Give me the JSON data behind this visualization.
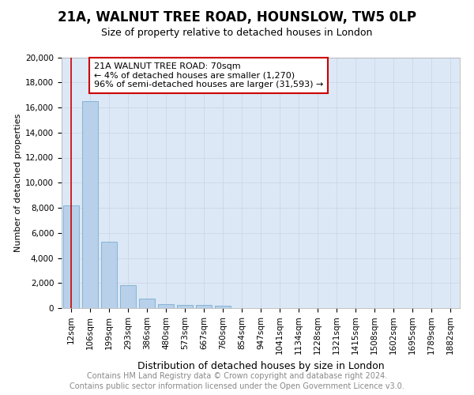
{
  "title": "21A, WALNUT TREE ROAD, HOUNSLOW, TW5 0LP",
  "subtitle": "Size of property relative to detached houses in London",
  "xlabel": "Distribution of detached houses by size in London",
  "ylabel": "Number of detached properties",
  "categories": [
    "12sqm",
    "106sqm",
    "199sqm",
    "293sqm",
    "386sqm",
    "480sqm",
    "573sqm",
    "667sqm",
    "760sqm",
    "854sqm",
    "947sqm",
    "1041sqm",
    "1134sqm",
    "1228sqm",
    "1321sqm",
    "1415sqm",
    "1508sqm",
    "1602sqm",
    "1695sqm",
    "1789sqm",
    "1882sqm"
  ],
  "values": [
    8200,
    16500,
    5300,
    1850,
    750,
    330,
    270,
    230,
    200,
    0,
    0,
    0,
    0,
    0,
    0,
    0,
    0,
    0,
    0,
    0,
    0
  ],
  "bar_color": "#b8d0ea",
  "bar_edge_color": "#7aaed0",
  "marker_color": "#cc0000",
  "annotation_title": "21A WALNUT TREE ROAD: 70sqm",
  "annotation_line1": "← 4% of detached houses are smaller (1,270)",
  "annotation_line2": "96% of semi-detached houses are larger (31,593) →",
  "annotation_box_facecolor": "#ffffff",
  "annotation_box_edgecolor": "#cc0000",
  "ylim": [
    0,
    20000
  ],
  "yticks": [
    0,
    2000,
    4000,
    6000,
    8000,
    10000,
    12000,
    14000,
    16000,
    18000,
    20000
  ],
  "grid_color": "#c8d4e8",
  "background_color": "#dce8f5",
  "footer_line1": "Contains HM Land Registry data © Crown copyright and database right 2024.",
  "footer_line2": "Contains public sector information licensed under the Open Government Licence v3.0.",
  "title_fontsize": 12,
  "subtitle_fontsize": 9,
  "xlabel_fontsize": 9,
  "ylabel_fontsize": 8,
  "tick_fontsize": 7.5,
  "annotation_fontsize": 8,
  "footer_fontsize": 7
}
